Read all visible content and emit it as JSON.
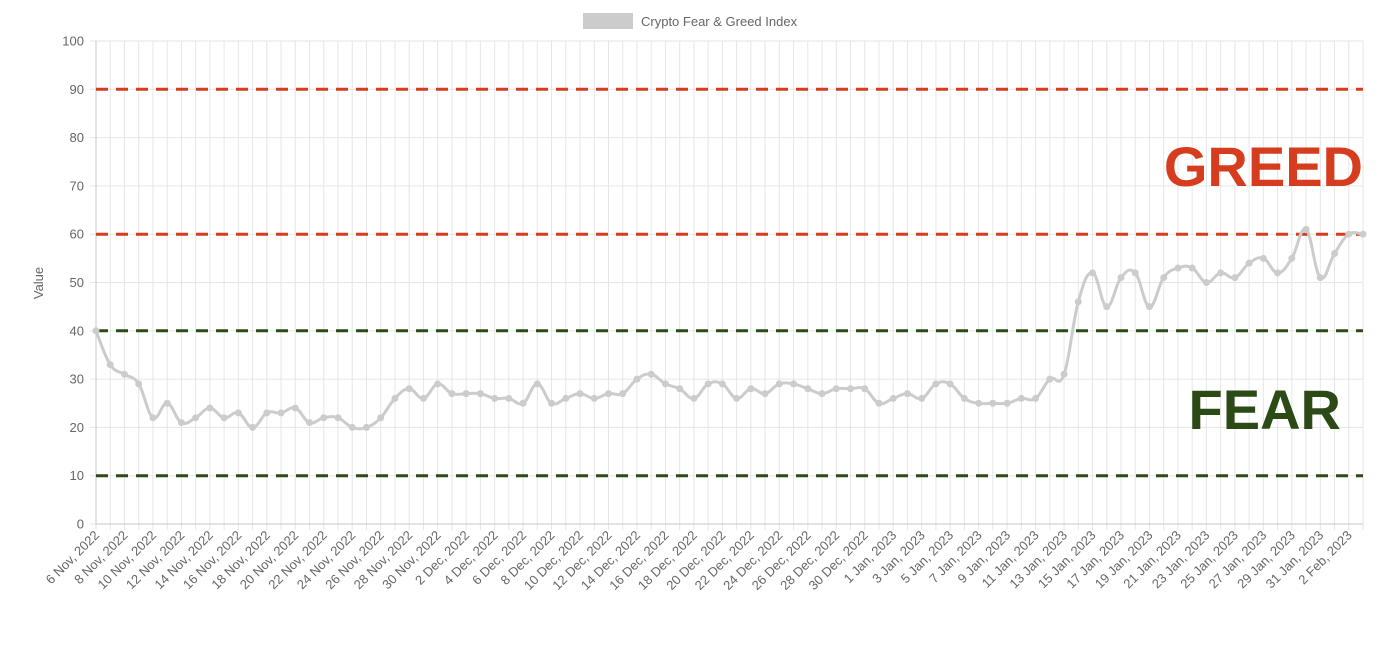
{
  "chart_data": {
    "type": "line",
    "title": "",
    "legend": {
      "label": "Crypto Fear & Greed Index",
      "placement": "top-center",
      "swatch_color": "#cccccc"
    },
    "xlabel": "",
    "ylabel": "Value",
    "ylim": [
      0,
      100
    ],
    "yticks": [
      0,
      10,
      20,
      30,
      40,
      50,
      60,
      70,
      80,
      90,
      100
    ],
    "grid": true,
    "xtick_labels": [
      "6 Nov, 2022",
      "8 Nov, 2022",
      "10 Nov, 2022",
      "12 Nov, 2022",
      "14 Nov, 2022",
      "16 Nov, 2022",
      "18 Nov, 2022",
      "20 Nov, 2022",
      "22 Nov, 2022",
      "24 Nov, 2022",
      "26 Nov, 2022",
      "28 Nov, 2022",
      "30 Nov, 2022",
      "2 Dec, 2022",
      "4 Dec, 2022",
      "6 Dec, 2022",
      "8 Dec, 2022",
      "10 Dec, 2022",
      "12 Dec, 2022",
      "14 Dec, 2022",
      "16 Dec, 2022",
      "18 Dec, 2022",
      "20 Dec, 2022",
      "22 Dec, 2022",
      "24 Dec, 2022",
      "26 Dec, 2022",
      "28 Dec, 2022",
      "30 Dec, 2022",
      "1 Jan, 2023",
      "3 Jan, 2023",
      "5 Jan, 2023",
      "7 Jan, 2023",
      "9 Jan, 2023",
      "11 Jan, 2023",
      "13 Jan, 2023",
      "15 Jan, 2023",
      "17 Jan, 2023",
      "19 Jan, 2023",
      "21 Jan, 2023",
      "23 Jan, 2023",
      "25 Jan, 2023",
      "27 Jan, 2023",
      "29 Jan, 2023",
      "31 Jan, 2023",
      "2 Feb, 2023"
    ],
    "x_start": "6 Nov, 2022",
    "series": [
      {
        "name": "Crypto Fear & Greed Index",
        "color": "#cccccc",
        "values": [
          40,
          33,
          31,
          29,
          22,
          25,
          21,
          22,
          24,
          22,
          23,
          20,
          23,
          23,
          24,
          21,
          22,
          22,
          20,
          20,
          22,
          26,
          28,
          26,
          29,
          27,
          27,
          27,
          26,
          26,
          25,
          29,
          25,
          26,
          27,
          26,
          27,
          27,
          30,
          31,
          29,
          28,
          26,
          29,
          29,
          26,
          28,
          27,
          29,
          29,
          28,
          27,
          28,
          28,
          28,
          25,
          26,
          27,
          26,
          29,
          29,
          26,
          25,
          25,
          25,
          26,
          26,
          30,
          31,
          46,
          52,
          45,
          51,
          52,
          45,
          51,
          53,
          53,
          50,
          52,
          51,
          54,
          55,
          52,
          55,
          61,
          51,
          56,
          60,
          60
        ]
      }
    ],
    "reference_lines": [
      {
        "value": 90,
        "color": "#d63c1e"
      },
      {
        "value": 60,
        "color": "#d63c1e"
      },
      {
        "value": 40,
        "color": "#2b4a16"
      },
      {
        "value": 10,
        "color": "#2b4a16"
      }
    ],
    "annotations": [
      {
        "text": "GREED",
        "color": "#d63c1e"
      },
      {
        "text": "FEAR",
        "color": "#2b4a16"
      }
    ]
  }
}
